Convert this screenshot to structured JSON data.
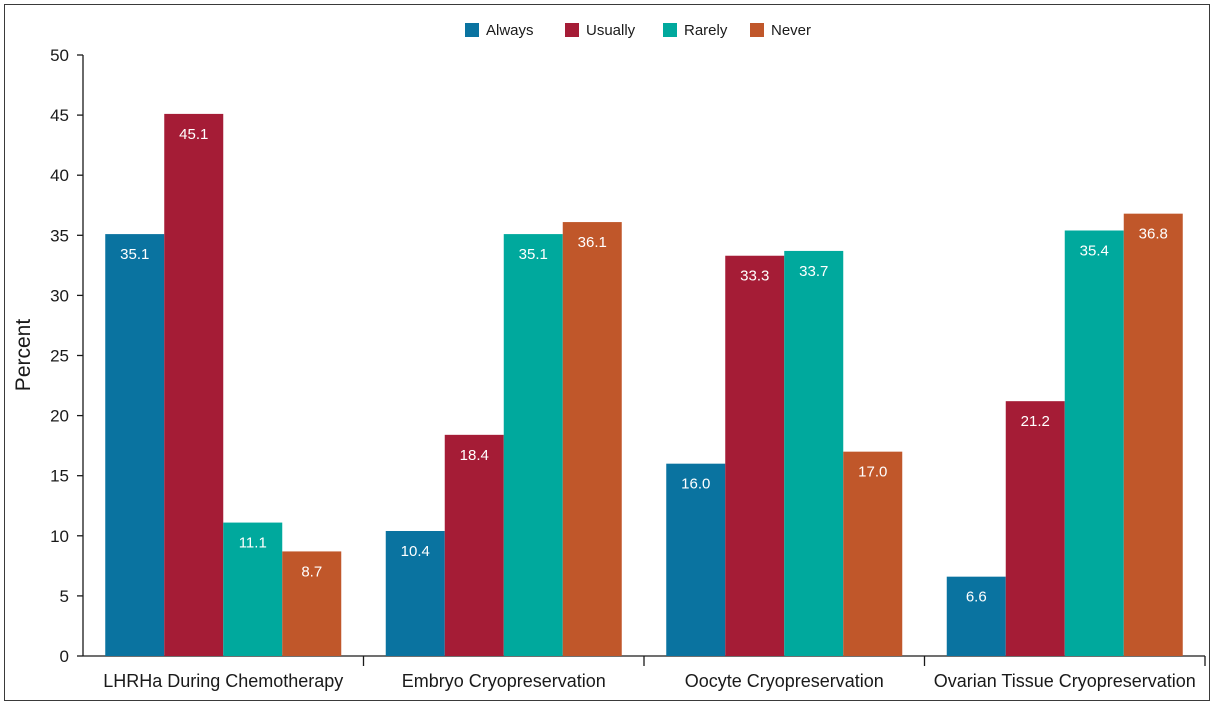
{
  "chart_data": {
    "type": "bar",
    "categories": [
      "LHRHa During Chemotherapy",
      "Embryo Cryopreservation",
      "Oocyte Cryopreservation",
      "Ovarian Tissue Cryopreservation"
    ],
    "series": [
      {
        "name": "Always",
        "color": "#0a73a0",
        "values": [
          35.1,
          10.4,
          16.0,
          6.6
        ]
      },
      {
        "name": "Usually",
        "color": "#a51c36",
        "values": [
          45.1,
          18.4,
          33.3,
          21.2
        ]
      },
      {
        "name": "Rarely",
        "color": "#00a99d",
        "values": [
          11.1,
          35.1,
          33.7,
          35.4
        ]
      },
      {
        "name": "Never",
        "color": "#c0572a",
        "values": [
          8.7,
          36.1,
          17.0,
          36.8
        ]
      }
    ],
    "ylabel": "Percent",
    "xlabel": "",
    "ylim": [
      0,
      50
    ],
    "yticks": [
      0,
      5,
      10,
      15,
      20,
      25,
      30,
      35,
      40,
      45,
      50
    ],
    "legend_position": "top-center",
    "grid": false,
    "value_labels": true,
    "value_format": "one-decimal"
  }
}
